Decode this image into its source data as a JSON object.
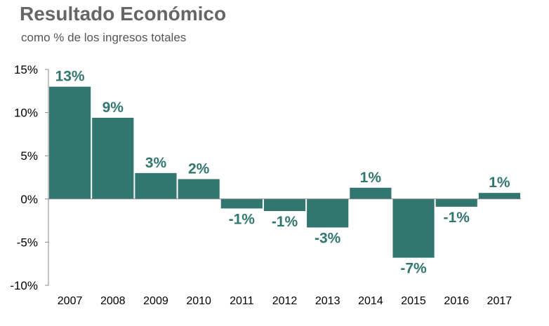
{
  "chart_data": {
    "type": "bar",
    "title": "Resultado Económico",
    "subtitle": "como % de los ingresos totales",
    "categories": [
      "2007",
      "2008",
      "2009",
      "2010",
      "2011",
      "2012",
      "2013",
      "2014",
      "2015",
      "2016",
      "2017"
    ],
    "values": [
      13.0,
      9.4,
      3.0,
      2.3,
      -1.1,
      -1.4,
      -3.3,
      1.3,
      -6.8,
      -0.9,
      0.7
    ],
    "data_labels": [
      "13%",
      "9%",
      "3%",
      "2%",
      "-1%",
      "-1%",
      "-3%",
      "1%",
      "-7%",
      "-1%",
      "1%"
    ],
    "ylim": [
      -10,
      15
    ],
    "yticks": [
      15,
      10,
      5,
      0,
      -5,
      -10
    ],
    "ytick_labels": [
      "15%",
      "10%",
      "5%",
      "0%",
      "-5%",
      "-10%"
    ],
    "grid": false,
    "legend": "none",
    "bar_color": "#31776F",
    "label_color": "#31776F"
  }
}
